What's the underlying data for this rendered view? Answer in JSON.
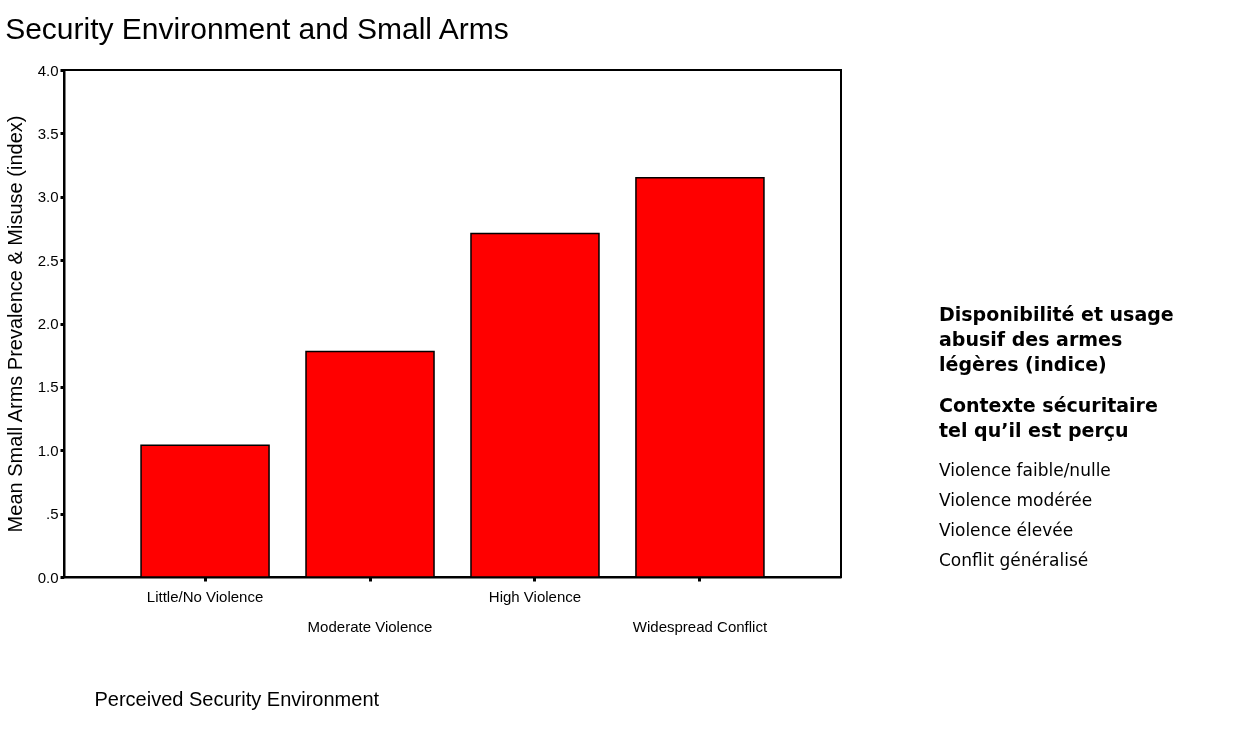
{
  "chart_data": {
    "type": "bar",
    "title": "Security Environment and Small Arms",
    "categories": [
      "Little/No Violence",
      "Moderate Violence",
      "High Violence",
      "Widespread Conflict"
    ],
    "values": [
      1.04,
      1.78,
      2.71,
      3.15
    ],
    "color": "#ff0000",
    "xlabel": "Perceived Security Environment",
    "ylabel": "Mean Small Arms Prevalence & Misuse (index)",
    "ylim": [
      0,
      4
    ],
    "yticks": [
      {
        "value": 0,
        "label": "0.0"
      },
      {
        "value": 0.5,
        "label": ".5"
      },
      {
        "value": 1,
        "label": "1.0"
      },
      {
        "value": 1.5,
        "label": "1.5"
      },
      {
        "value": 2,
        "label": "2.0"
      },
      {
        "value": 2.5,
        "label": "2.5"
      },
      {
        "value": 3,
        "label": "3.0"
      },
      {
        "value": 3.5,
        "label": "3.5"
      },
      {
        "value": 4,
        "label": "4.0"
      }
    ],
    "grid": false,
    "annotations": [
      "Disponibilité et usage\nabusif des armes\nlégères (indice)",
      "Contexte sécuritaire\ntel qu’il est perçu",
      "Violence faible/nulle",
      "Violence modérée",
      "Violence élevée",
      "Conflit généralisé"
    ]
  }
}
